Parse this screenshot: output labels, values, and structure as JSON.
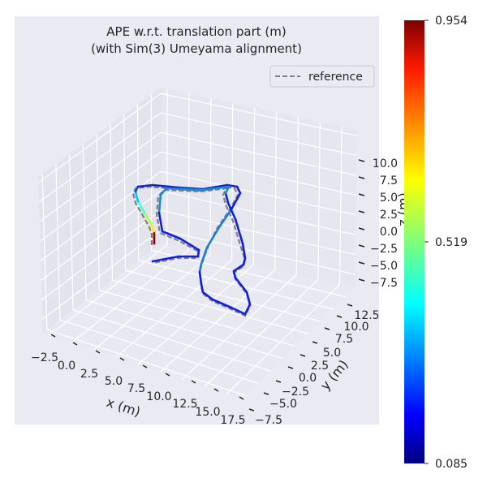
{
  "chart_data": {
    "type": "line",
    "projection": "3d",
    "title": "APE w.r.t. translation part (m)",
    "subtitle": "(with Sim(3) Umeyama alignment)",
    "xlabel": "x (m)",
    "ylabel": "y (m)",
    "zlabel": "z (m)",
    "x_ticks": [
      "−2.5",
      "0.0",
      "2.5",
      "5.0",
      "7.5",
      "10.0",
      "12.5",
      "15.0",
      "17.5"
    ],
    "y_ticks": [
      "−7.5",
      "−5.0",
      "−2.5",
      "0.0",
      "2.5",
      "5.0",
      "7.5",
      "10.0",
      "12.5"
    ],
    "z_ticks": [
      "10.0",
      "7.5",
      "5.0",
      "2.5",
      "0.0",
      "−2.5",
      "−5.0",
      "−7.5"
    ],
    "grid": true,
    "legend": {
      "placement": "top-right",
      "entries": [
        {
          "name": "reference",
          "style": "dashed",
          "color": "#7f7f7f"
        }
      ]
    },
    "colorbar": {
      "colormap": "jet",
      "min": 0.085,
      "max": 0.954,
      "ticks": [
        "0.954",
        "0.519",
        "0.085"
      ]
    },
    "background_color": "#eaeaf2"
  }
}
